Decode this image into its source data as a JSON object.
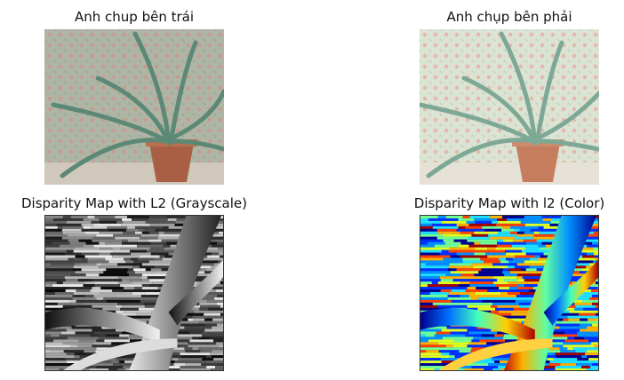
{
  "figure": {
    "panels": [
      {
        "title": "Anh chup bên trái",
        "kind": "photo-left"
      },
      {
        "title": "Anh chụp bên phải",
        "kind": "photo-right"
      },
      {
        "title": "Disparity Map with L2 (Grayscale)",
        "kind": "disparity-gray"
      },
      {
        "title": "Disparity Map with l2 (Color)",
        "kind": "disparity-color"
      }
    ]
  },
  "colors": {
    "wallpaper": "#b9bfae",
    "wallpaper_light": "#dfe6d6",
    "pot": "#b0674a",
    "leaf": "#6f9a86",
    "leaf_dark": "#4f7565",
    "floor": "#d8d2c6"
  }
}
